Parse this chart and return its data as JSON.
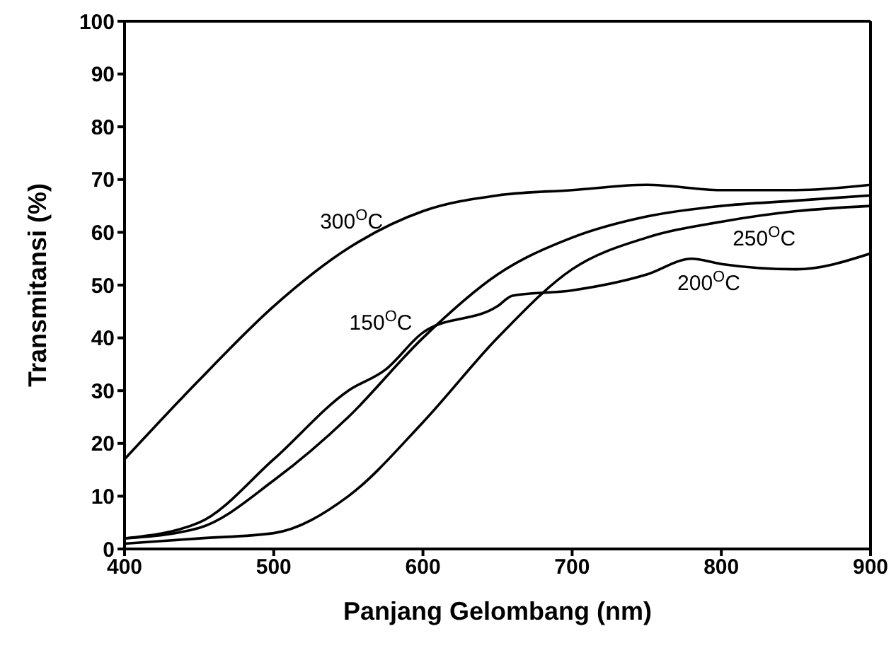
{
  "chart_data": {
    "type": "line",
    "xlabel": "Panjang Gelombang   (nm)",
    "ylabel": "Transmitansi  (%)",
    "xlim": [
      400,
      900
    ],
    "xticks": [
      400,
      500,
      600,
      700,
      800,
      900
    ],
    "ylim": [
      0,
      100
    ],
    "yticks": [
      0,
      10,
      20,
      30,
      40,
      50,
      60,
      70,
      80,
      90,
      100
    ],
    "marker": "none",
    "line_style": "solid",
    "series": [
      {
        "name": "300$^{O}$C",
        "color": "#000000",
        "x": [
          400,
          450,
          500,
          550,
          600,
          650,
          700,
          750,
          800,
          850,
          900
        ],
        "values": [
          17,
          32,
          46,
          57,
          64,
          67,
          68,
          69,
          68,
          68,
          69
        ]
      },
      {
        "name": "150$^{O}$C",
        "color": "#000000",
        "x": [
          400,
          450,
          500,
          550,
          600,
          650,
          700,
          750,
          800,
          850,
          900
        ],
        "values": [
          2,
          4,
          13,
          25,
          40,
          52,
          59,
          63,
          65,
          66,
          67
        ]
      },
      {
        "name": "250$^{O}$C",
        "color": "#000000",
        "x": [
          400,
          450,
          500,
          550,
          600,
          650,
          700,
          750,
          800,
          850,
          900
        ],
        "values": [
          1,
          2,
          3,
          10,
          24,
          40,
          53,
          59,
          62,
          64,
          65
        ]
      },
      {
        "name": "200$^{O}$C",
        "color": "#000000",
        "x": [
          400,
          450,
          500,
          550,
          575,
          600,
          650,
          660,
          700,
          750,
          780,
          800,
          850,
          900
        ],
        "values": [
          2,
          5,
          17,
          30,
          34,
          41,
          46,
          48,
          49,
          52,
          55,
          54,
          53,
          56
        ]
      }
    ]
  }
}
